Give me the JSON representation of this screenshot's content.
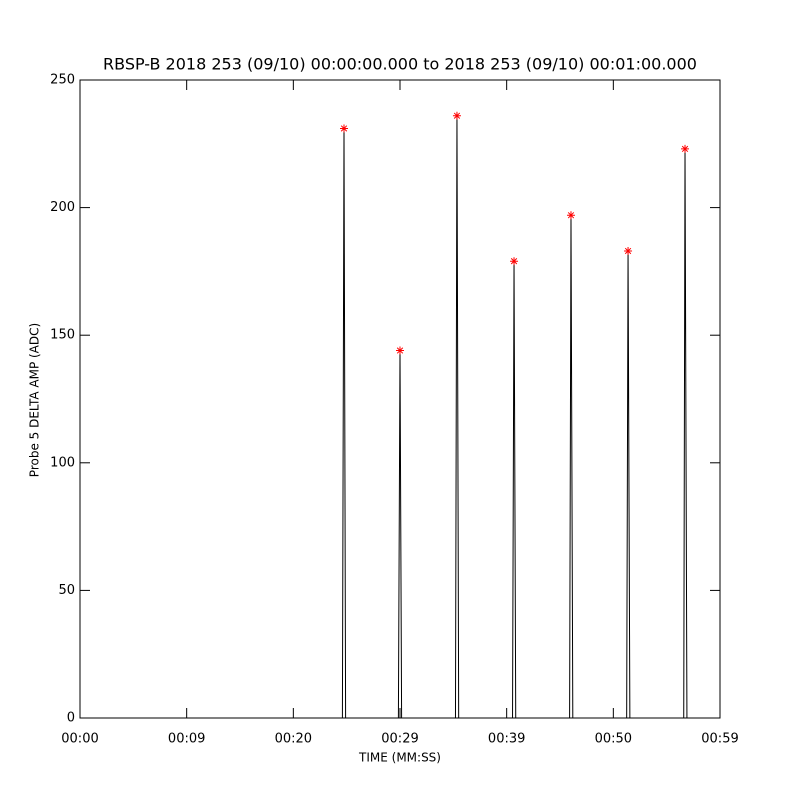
{
  "chart_data": {
    "type": "line",
    "title": "RBSP-B 2018 253 (09/10) 00:00:00.000 to 2018 253 (09/10) 00:01:00.000",
    "xlabel": "TIME (MM:SS)",
    "ylabel": "Probe 5 DELTA AMP (ADC)",
    "x": [
      0,
      24.6,
      24.75,
      24.9,
      29.85,
      30.0,
      30.15,
      35.2,
      35.34,
      35.5,
      40.55,
      40.69,
      40.85,
      45.9,
      46.03,
      46.2,
      51.25,
      51.38,
      51.55,
      56.6,
      56.72,
      56.9,
      59
    ],
    "series": [
      {
        "color": "#000000",
        "values": [
          0,
          0,
          231,
          0,
          0,
          144,
          0,
          0,
          236,
          0,
          0,
          179,
          0,
          0,
          197,
          0,
          0,
          183,
          0,
          0,
          223,
          0,
          0
        ]
      },
      {
        "color": "#ff0000",
        "marker": "asterisk",
        "x": [
          24.75,
          30.0,
          35.34,
          40.69,
          46.03,
          51.38,
          56.72
        ],
        "values": [
          231,
          144,
          236,
          179,
          197,
          183,
          223
        ]
      }
    ],
    "xlim": [
      0,
      60
    ],
    "xticks": [
      {
        "value": 0,
        "label": "00:00"
      },
      {
        "value": 10,
        "label": "00:09"
      },
      {
        "value": 20,
        "label": "00:20"
      },
      {
        "value": 30,
        "label": "00:29"
      },
      {
        "value": 40,
        "label": "00:39"
      },
      {
        "value": 50,
        "label": "00:50"
      },
      {
        "value": 60,
        "label": "00:59"
      }
    ],
    "ylim": [
      0,
      250
    ],
    "yticks": [
      0,
      50,
      100,
      150,
      200,
      250
    ]
  }
}
